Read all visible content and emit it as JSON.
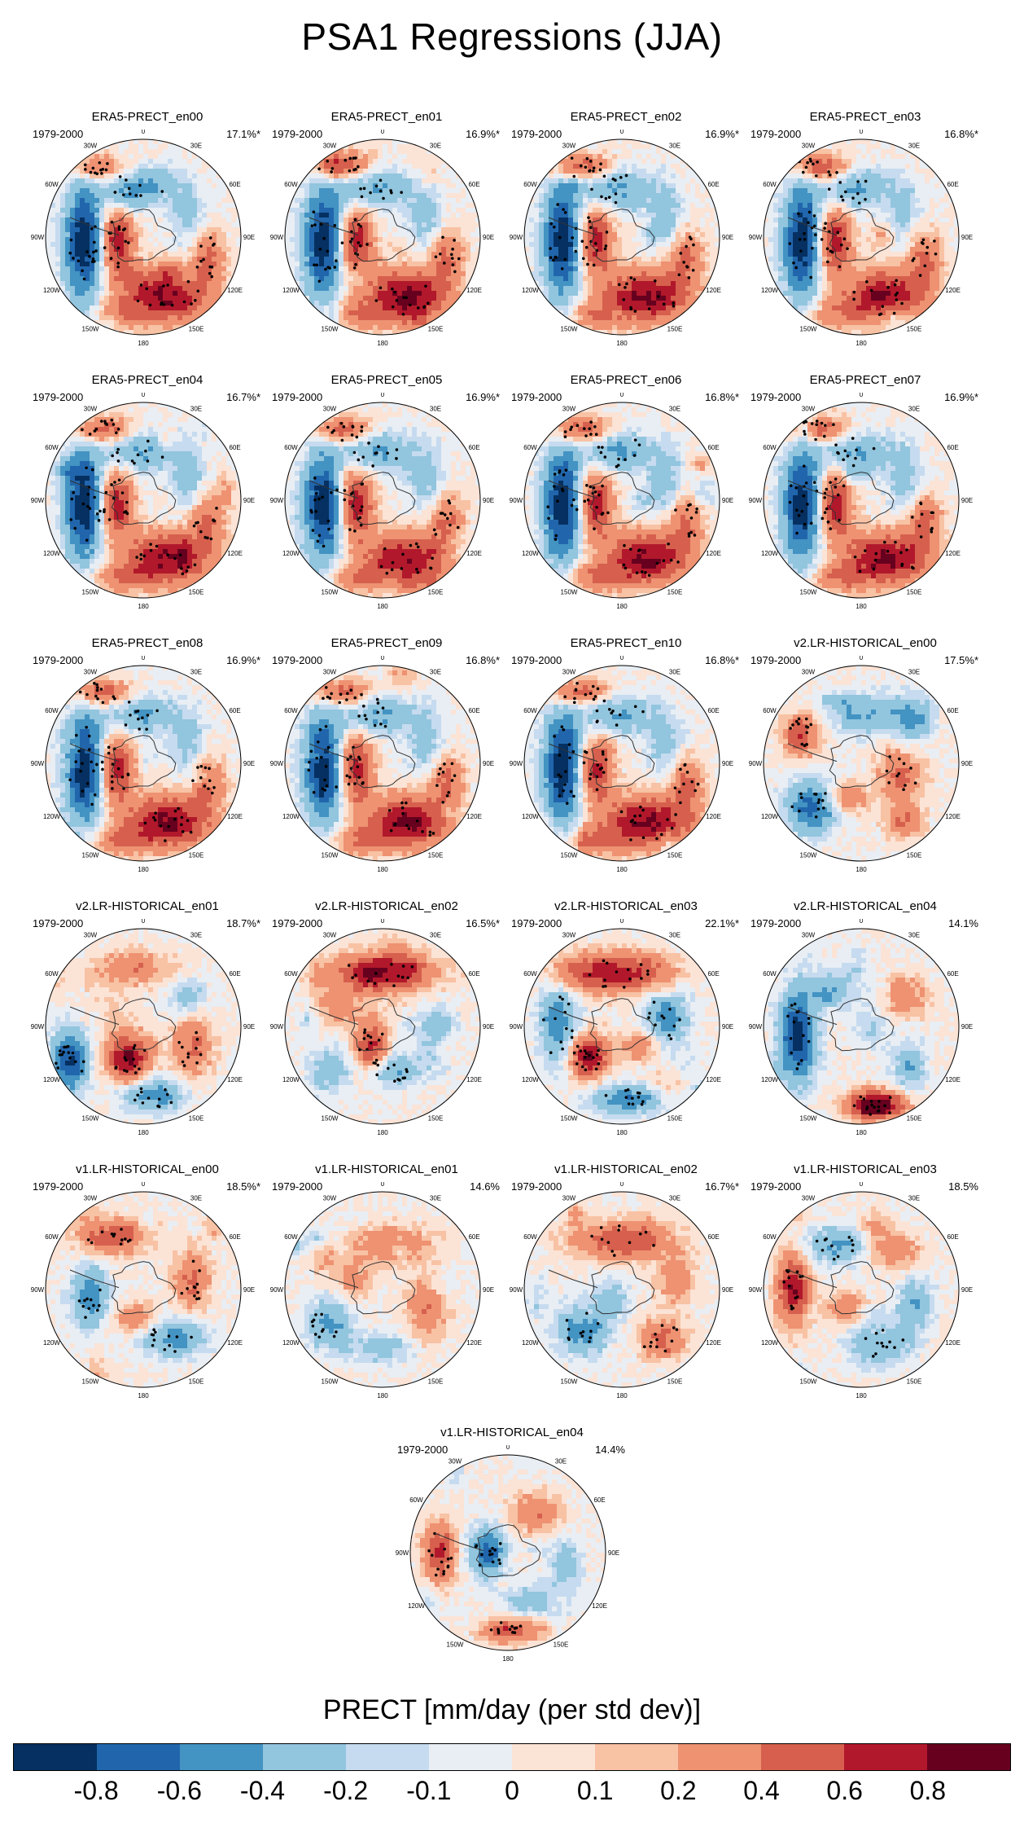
{
  "figure": {
    "title": "PSA1 Regressions (JJA)",
    "colorbar_title": "PRECT [mm/day (per std dev)]",
    "colorbar_ticks": [
      "-0.8",
      "-0.6",
      "-0.4",
      "-0.2",
      "-0.1",
      "0",
      "0.1",
      "0.2",
      "0.4",
      "0.6",
      "0.8"
    ],
    "colorbar_colors": [
      "#053061",
      "#2166ac",
      "#4393c3",
      "#92c5de",
      "#c6dbef",
      "#e8eef4",
      "#fbe3d6",
      "#f8c2a4",
      "#ee9272",
      "#d6604d",
      "#b2182b",
      "#67001f"
    ]
  },
  "lon_labels": [
    "0",
    "30E",
    "60E",
    "90E",
    "120E",
    "150E",
    "180",
    "150W",
    "120W",
    "90W",
    "60W",
    "30W"
  ],
  "chart_data": {
    "type": "polar-map-grid",
    "title": "PSA1 Regressions (JJA)",
    "variable": "PRECT [mm/day (per std dev)]",
    "period": "1979-2000",
    "panels": [
      {
        "name": "ERA5-PRECT_en00",
        "period": "1979-2000",
        "explained_variance": "17.1%*",
        "pattern": "era5"
      },
      {
        "name": "ERA5-PRECT_en01",
        "period": "1979-2000",
        "explained_variance": "16.9%*",
        "pattern": "era5"
      },
      {
        "name": "ERA5-PRECT_en02",
        "period": "1979-2000",
        "explained_variance": "16.9%*",
        "pattern": "era5"
      },
      {
        "name": "ERA5-PRECT_en03",
        "period": "1979-2000",
        "explained_variance": "16.8%*",
        "pattern": "era5"
      },
      {
        "name": "ERA5-PRECT_en04",
        "period": "1979-2000",
        "explained_variance": "16.7%*",
        "pattern": "era5"
      },
      {
        "name": "ERA5-PRECT_en05",
        "period": "1979-2000",
        "explained_variance": "16.9%*",
        "pattern": "era5"
      },
      {
        "name": "ERA5-PRECT_en06",
        "period": "1979-2000",
        "explained_variance": "16.8%*",
        "pattern": "era5"
      },
      {
        "name": "ERA5-PRECT_en07",
        "period": "1979-2000",
        "explained_variance": "16.9%*",
        "pattern": "era5"
      },
      {
        "name": "ERA5-PRECT_en08",
        "period": "1979-2000",
        "explained_variance": "16.9%*",
        "pattern": "era5"
      },
      {
        "name": "ERA5-PRECT_en09",
        "period": "1979-2000",
        "explained_variance": "16.8%*",
        "pattern": "era5"
      },
      {
        "name": "ERA5-PRECT_en10",
        "period": "1979-2000",
        "explained_variance": "16.8%*",
        "pattern": "era5"
      },
      {
        "name": "v2.LR-HISTORICAL_en00",
        "period": "1979-2000",
        "explained_variance": "17.5%*",
        "pattern": "v2a"
      },
      {
        "name": "v2.LR-HISTORICAL_en01",
        "period": "1979-2000",
        "explained_variance": "18.7%*",
        "pattern": "v2b"
      },
      {
        "name": "v2.LR-HISTORICAL_en02",
        "period": "1979-2000",
        "explained_variance": "16.5%*",
        "pattern": "v2c"
      },
      {
        "name": "v2.LR-HISTORICAL_en03",
        "period": "1979-2000",
        "explained_variance": "22.1%*",
        "pattern": "v2d"
      },
      {
        "name": "v2.LR-HISTORICAL_en04",
        "period": "1979-2000",
        "explained_variance": "14.1%",
        "pattern": "v2e"
      },
      {
        "name": "v1.LR-HISTORICAL_en00",
        "period": "1979-2000",
        "explained_variance": "18.5%*",
        "pattern": "v1a"
      },
      {
        "name": "v1.LR-HISTORICAL_en01",
        "period": "1979-2000",
        "explained_variance": "14.6%",
        "pattern": "v1b"
      },
      {
        "name": "v1.LR-HISTORICAL_en02",
        "period": "1979-2000",
        "explained_variance": "16.7%*",
        "pattern": "v1c"
      },
      {
        "name": "v1.LR-HISTORICAL_en03",
        "period": "1979-2000",
        "explained_variance": "18.5%",
        "pattern": "v1d"
      },
      {
        "name": "v1.LR-HISTORICAL_en04",
        "period": "1979-2000",
        "explained_variance": "14.4%",
        "pattern": "v1e"
      }
    ],
    "colorbar": {
      "levels": [
        -0.8,
        -0.6,
        -0.4,
        -0.2,
        -0.1,
        0,
        0.1,
        0.2,
        0.4,
        0.6,
        0.8
      ],
      "tick_labels": [
        "-0.8",
        "-0.6",
        "-0.4",
        "-0.2",
        "-0.1",
        "0",
        "0.1",
        "0.2",
        "0.4",
        "0.6",
        "0.8"
      ]
    }
  }
}
